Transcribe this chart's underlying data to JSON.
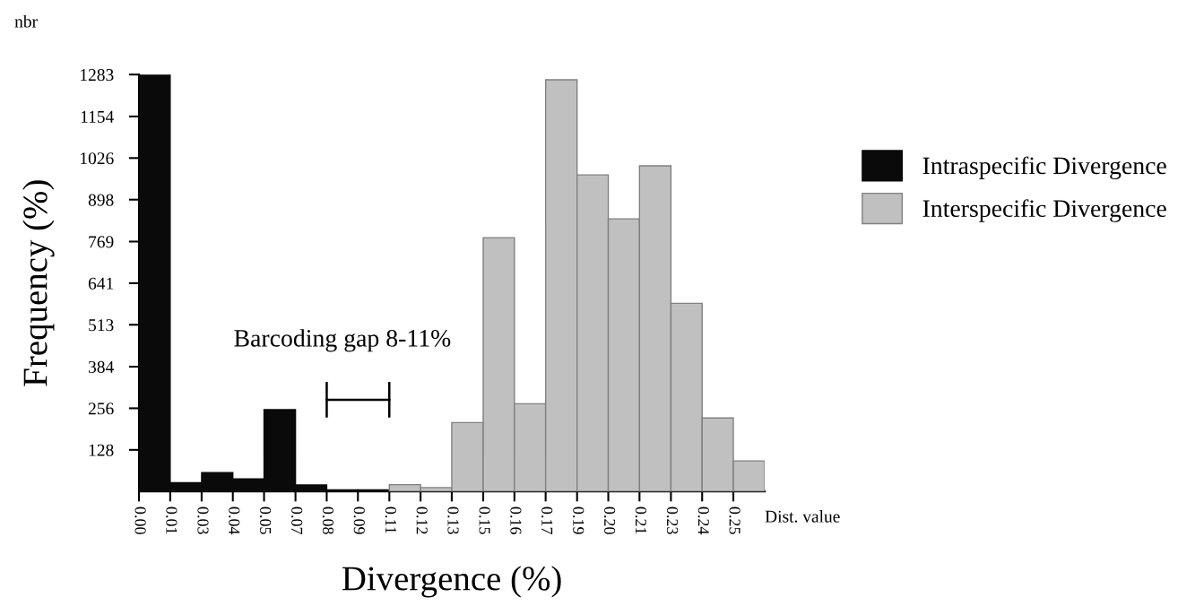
{
  "chart_data": {
    "type": "histogram",
    "xlabel": "Divergence (%)",
    "ylabel": "Frequency (%)",
    "bins": [
      0,
      0.0133,
      0.0267,
      0.04,
      0.0533,
      0.0667,
      0.08,
      0.0933,
      0.1067,
      0.12,
      0.1333,
      0.1467,
      0.16,
      0.1733,
      0.1867,
      0.2,
      0.2133,
      0.2267,
      0.24,
      0.2533,
      0.2667
    ],
    "series": [
      {
        "name": "Intraspecific Divergence",
        "color": "#0a0a0a",
        "values": [
          1283,
          27,
          58,
          39,
          252,
          20,
          5,
          5,
          null,
          null,
          null,
          null,
          null,
          null,
          null,
          null,
          null,
          null,
          null,
          null
        ]
      },
      {
        "name": "Interspecific Divergence",
        "color": "#c0c0c0",
        "values": [
          null,
          null,
          null,
          null,
          null,
          null,
          null,
          null,
          21,
          12,
          212,
          781,
          270,
          1267,
          974,
          839,
          1002,
          579,
          226,
          94
        ]
      }
    ],
    "xlim": [
      0,
      0.2667
    ],
    "xticks": [
      {
        "value": 0,
        "label": "0.00"
      },
      {
        "value": 0.0133,
        "label": "0.01"
      },
      {
        "value": 0.0267,
        "label": "0.03"
      },
      {
        "value": 0.04,
        "label": "0.04"
      },
      {
        "value": 0.0533,
        "label": "0.05"
      },
      {
        "value": 0.0667,
        "label": "0.07"
      },
      {
        "value": 0.08,
        "label": "0.08"
      },
      {
        "value": 0.0933,
        "label": "0.09"
      },
      {
        "value": 0.1067,
        "label": "0.11"
      },
      {
        "value": 0.12,
        "label": "0.12"
      },
      {
        "value": 0.1333,
        "label": "0.13"
      },
      {
        "value": 0.1467,
        "label": "0.15"
      },
      {
        "value": 0.16,
        "label": "0.16"
      },
      {
        "value": 0.1733,
        "label": "0.17"
      },
      {
        "value": 0.1867,
        "label": "0.19"
      },
      {
        "value": 0.2,
        "label": "0.20"
      },
      {
        "value": 0.2133,
        "label": "0.21"
      },
      {
        "value": 0.2267,
        "label": "0.23"
      },
      {
        "value": 0.24,
        "label": "0.24"
      },
      {
        "value": 0.2533,
        "label": "0.25"
      }
    ],
    "ylim": [
      0,
      1283
    ],
    "yticks": [
      128,
      256,
      384,
      513,
      641,
      769,
      898,
      1026,
      1154,
      1283
    ],
    "annotations": [
      "Barcoding gap 8-11%",
      "nbr",
      "Dist. value"
    ],
    "legend": "right",
    "grid": false
  }
}
